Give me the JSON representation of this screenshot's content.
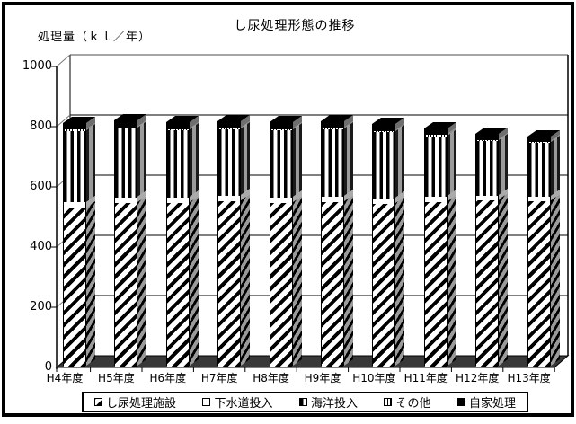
{
  "page": {
    "title": "し尿処理形態の推移",
    "y_axis_label": "処理量（ｋｌ／年）"
  },
  "chart_data": {
    "type": "bar",
    "stacked": true,
    "pseudo_3d": true,
    "title": "し尿処理形態の推移",
    "ylabel": "処理量（ｋｌ／年）",
    "xlabel": "",
    "ylim": [
      0,
      1000
    ],
    "yticks": [
      0,
      200,
      400,
      600,
      800,
      1000
    ],
    "grid": true,
    "legend_position": "bottom",
    "categories": [
      "H4年度",
      "H5年度",
      "H6年度",
      "H7年度",
      "H8年度",
      "H9年度",
      "H10年度",
      "H11年度",
      "H12年度",
      "H13年度"
    ],
    "series": [
      {
        "name": "し尿処理施設",
        "pattern": "hatch",
        "values": [
          525,
          542,
          542,
          548,
          542,
          545,
          540,
          545,
          553,
          550
        ]
      },
      {
        "name": "下水道投入",
        "pattern": "sewer",
        "values": [
          20,
          18,
          18,
          18,
          18,
          18,
          16,
          20,
          15,
          15
        ]
      },
      {
        "name": "海洋投入",
        "pattern": "ocean",
        "values": [
          238,
          230,
          224,
          221,
          224,
          225,
          222,
          200,
          181,
          178
        ]
      },
      {
        "name": "その他",
        "pattern": "other",
        "values": [
          4,
          4,
          4,
          4,
          4,
          4,
          4,
          4,
          4,
          4
        ]
      },
      {
        "name": "自家処理",
        "pattern": "self",
        "values": [
          20,
          20,
          20,
          20,
          20,
          20,
          20,
          19,
          17,
          14
        ]
      }
    ],
    "totals_approx": [
      807,
      814,
      808,
      811,
      808,
      812,
      802,
      788,
      770,
      761
    ],
    "colors": {
      "foreground": "#000000",
      "background": "#ffffff",
      "floor": "#383838",
      "side_shade": "#9a9a9a",
      "wall_edge": "#888888"
    }
  }
}
